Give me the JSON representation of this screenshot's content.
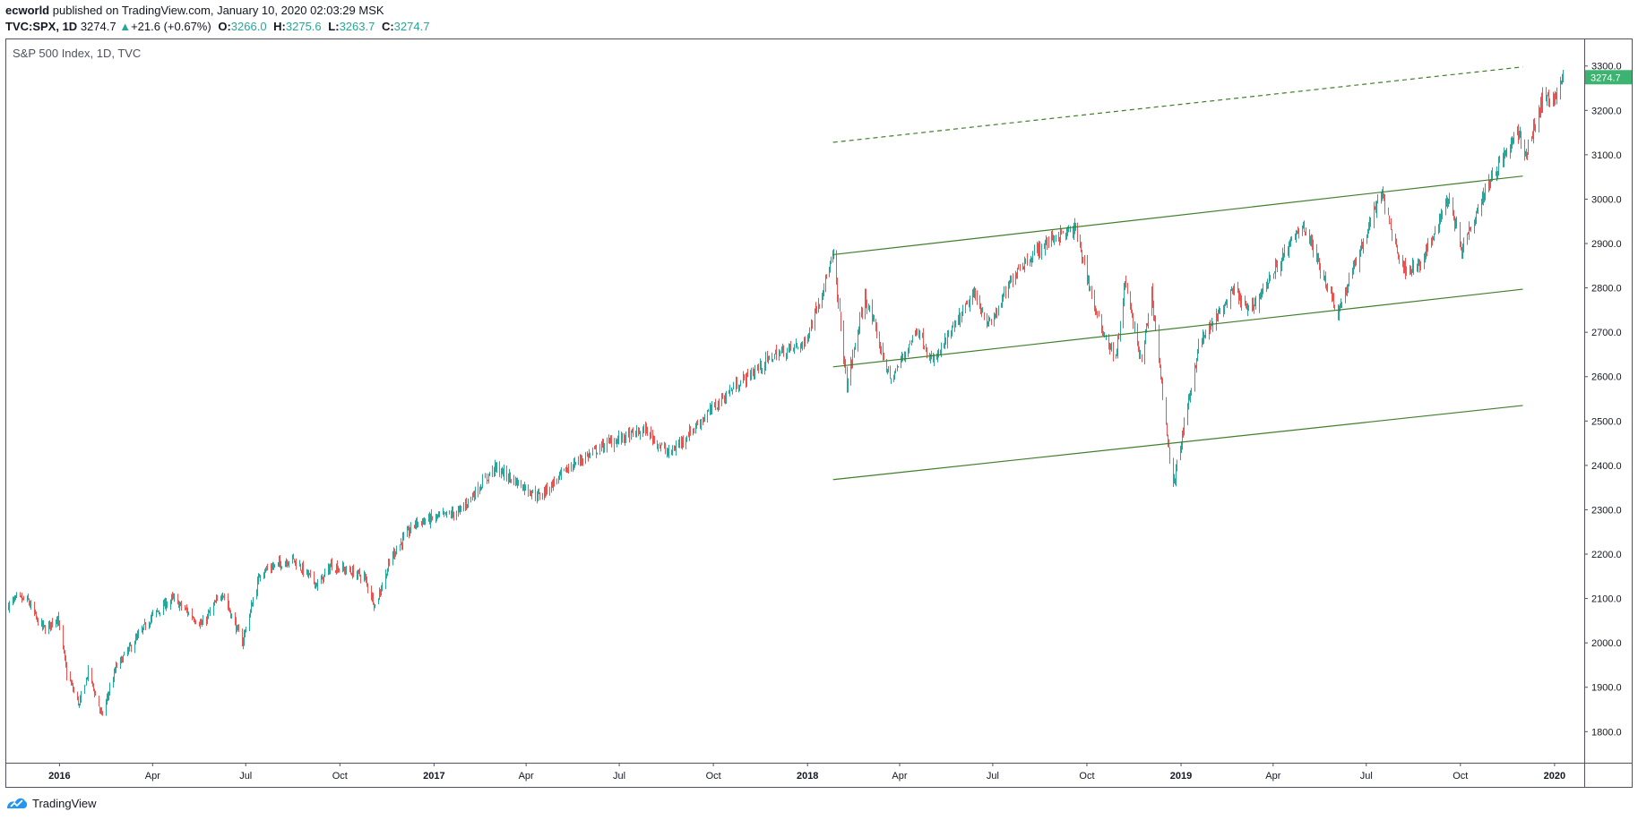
{
  "header": {
    "author": "ecworld",
    "published_text": "published on TradingView.com, January 10, 2020 02:03:29 MSK",
    "symbol": "TVC:SPX, 1D",
    "last": "3274.7",
    "change_arrow": "▲",
    "change": "+21.6 (+0.67%)",
    "o_label": "O:",
    "o_value": "3266.0",
    "h_label": "H:",
    "h_value": "3275.6",
    "l_label": "L:",
    "l_value": "3263.7",
    "c_label": "C:",
    "c_value": "3274.7"
  },
  "footer": {
    "brand": "TradingView",
    "logo_icon": "tradingview-logo-icon"
  },
  "colors": {
    "up": "#26a69a",
    "down": "#ef5350",
    "trendline": "#3f7f2a",
    "price_tag_bg": "#3cb371",
    "axis": "#131722"
  },
  "chart_data": {
    "type": "candlestick",
    "title": "S&P 500 Index, 1D, TVC",
    "price_tag": "3274.7",
    "y_ticks": [
      "1800.0",
      "1900.0",
      "2000.0",
      "2100.0",
      "2200.0",
      "2300.0",
      "2400.0",
      "2500.0",
      "2600.0",
      "2700.0",
      "2800.0",
      "2900.0",
      "3000.0",
      "3100.0",
      "3200.0",
      "3300.0"
    ],
    "y_range": [
      1730,
      3360
    ],
    "x_range": [
      "2015-11-10",
      "2020-01-30"
    ],
    "x_ticks": [
      {
        "label": "2016",
        "date": "2016-01-01",
        "bold": true
      },
      {
        "label": "Apr",
        "date": "2016-04-01"
      },
      {
        "label": "Jul",
        "date": "2016-07-01"
      },
      {
        "label": "Oct",
        "date": "2016-10-01"
      },
      {
        "label": "2017",
        "date": "2017-01-01",
        "bold": true
      },
      {
        "label": "Apr",
        "date": "2017-04-01"
      },
      {
        "label": "Jul",
        "date": "2017-07-01"
      },
      {
        "label": "Oct",
        "date": "2017-10-01"
      },
      {
        "label": "2018",
        "date": "2018-01-01",
        "bold": true
      },
      {
        "label": "Apr",
        "date": "2018-04-01"
      },
      {
        "label": "Jul",
        "date": "2018-07-01"
      },
      {
        "label": "Oct",
        "date": "2018-10-01"
      },
      {
        "label": "2019",
        "date": "2019-01-01",
        "bold": true
      },
      {
        "label": "Apr",
        "date": "2019-04-01"
      },
      {
        "label": "Jul",
        "date": "2019-07-01"
      },
      {
        "label": "Oct",
        "date": "2019-10-01"
      },
      {
        "label": "2020",
        "date": "2020-01-01",
        "bold": true
      }
    ],
    "price_path": [
      [
        "2015-11-12",
        2085
      ],
      [
        "2015-11-20",
        2100
      ],
      [
        "2015-12-01",
        2095
      ],
      [
        "2015-12-10",
        2050
      ],
      [
        "2015-12-18",
        2030
      ],
      [
        "2015-12-30",
        2060
      ],
      [
        "2016-01-08",
        1930
      ],
      [
        "2016-01-20",
        1860
      ],
      [
        "2016-01-29",
        1935
      ],
      [
        "2016-02-11",
        1835
      ],
      [
        "2016-02-25",
        1945
      ],
      [
        "2016-03-10",
        1990
      ],
      [
        "2016-03-31",
        2060
      ],
      [
        "2016-04-20",
        2100
      ],
      [
        "2016-05-19",
        2040
      ],
      [
        "2016-06-08",
        2115
      ],
      [
        "2016-06-27",
        2000
      ],
      [
        "2016-07-15",
        2160
      ],
      [
        "2016-08-15",
        2190
      ],
      [
        "2016-09-09",
        2130
      ],
      [
        "2016-09-22",
        2175
      ],
      [
        "2016-10-24",
        2150
      ],
      [
        "2016-11-04",
        2085
      ],
      [
        "2016-11-21",
        2200
      ],
      [
        "2016-12-13",
        2270
      ],
      [
        "2017-01-25",
        2295
      ],
      [
        "2017-03-01",
        2395
      ],
      [
        "2017-04-13",
        2330
      ],
      [
        "2017-05-15",
        2400
      ],
      [
        "2017-06-19",
        2450
      ],
      [
        "2017-07-26",
        2480
      ],
      [
        "2017-08-18",
        2425
      ],
      [
        "2017-09-20",
        2505
      ],
      [
        "2017-10-20",
        2575
      ],
      [
        "2017-11-30",
        2650
      ],
      [
        "2017-12-29",
        2675
      ],
      [
        "2018-01-26",
        2872
      ],
      [
        "2018-02-08",
        2580
      ],
      [
        "2018-02-26",
        2780
      ],
      [
        "2018-03-23",
        2590
      ],
      [
        "2018-04-18",
        2710
      ],
      [
        "2018-05-03",
        2630
      ],
      [
        "2018-06-12",
        2785
      ],
      [
        "2018-06-28",
        2715
      ],
      [
        "2018-07-25",
        2845
      ],
      [
        "2018-08-29",
        2915
      ],
      [
        "2018-09-20",
        2930
      ],
      [
        "2018-10-11",
        2730
      ],
      [
        "2018-10-29",
        2640
      ],
      [
        "2018-11-07",
        2810
      ],
      [
        "2018-11-23",
        2630
      ],
      [
        "2018-12-03",
        2790
      ],
      [
        "2018-12-24",
        2350
      ],
      [
        "2019-01-18",
        2670
      ],
      [
        "2019-02-22",
        2795
      ],
      [
        "2019-03-08",
        2745
      ],
      [
        "2019-04-30",
        2945
      ],
      [
        "2019-06-03",
        2745
      ],
      [
        "2019-07-15",
        3015
      ],
      [
        "2019-08-05",
        2845
      ],
      [
        "2019-08-23",
        2850
      ],
      [
        "2019-09-19",
        3005
      ],
      [
        "2019-10-02",
        2890
      ],
      [
        "2019-10-28",
        3040
      ],
      [
        "2019-11-27",
        3150
      ],
      [
        "2019-12-03",
        3095
      ],
      [
        "2019-12-20",
        3225
      ],
      [
        "2020-01-03",
        3235
      ],
      [
        "2020-01-09",
        3275
      ]
    ],
    "trendlines": [
      {
        "name": "upper-channel-line",
        "from": [
          "2018-01-26",
          2875
        ],
        "to": [
          "2019-12-01",
          3052
        ],
        "dashed": false
      },
      {
        "name": "middle-channel-line",
        "from": [
          "2018-01-26",
          2622
        ],
        "to": [
          "2019-12-01",
          2797
        ],
        "dashed": false
      },
      {
        "name": "lower-channel-line",
        "from": [
          "2018-01-26",
          2368
        ],
        "to": [
          "2019-12-01",
          2535
        ],
        "dashed": false
      },
      {
        "name": "projected-channel-line",
        "from": [
          "2018-01-26",
          3128
        ],
        "to": [
          "2019-12-01",
          3298
        ],
        "dashed": true
      }
    ]
  }
}
